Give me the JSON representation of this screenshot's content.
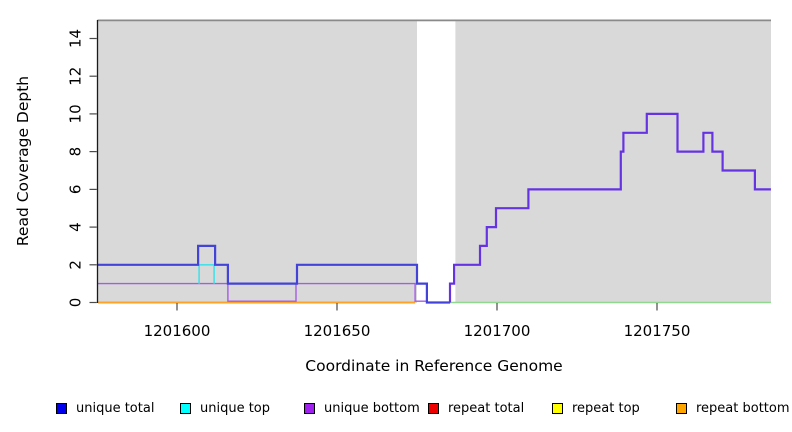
{
  "chart_data": {
    "type": "line",
    "subtype": "step-coverage",
    "title": "",
    "xlabel": "Coordinate in Reference Genome",
    "ylabel": "Read Coverage Depth",
    "xlim": [
      1201575,
      1201786
    ],
    "ylim": [
      0,
      15
    ],
    "x_ticks": [
      1201600,
      1201650,
      1201700,
      1201750
    ],
    "y_ticks": [
      0,
      2,
      4,
      6,
      8,
      10,
      12,
      14
    ],
    "grid": false,
    "plot_bg": "#d9d9d9",
    "gap_region": [
      1201675,
      1201687
    ],
    "series": [
      {
        "id": "repeat-bottom-line",
        "name": "repeat bottom",
        "color": "#ffa226",
        "width": 2,
        "points": [
          [
            1201575.3,
            0
          ],
          [
            1201674.4,
            0
          ]
        ]
      },
      {
        "id": "baseline-green",
        "name": "right baseline",
        "color": "#90d890",
        "width": 1.6,
        "points": [
          [
            1201685.3,
            0
          ],
          [
            1201785.6,
            0
          ]
        ]
      },
      {
        "id": "unique-bottom-line",
        "name": "unique bottom",
        "color": "#a55ce4",
        "width": 1.4,
        "points": [
          [
            1201575.3,
            1
          ],
          [
            1201615.9,
            1
          ],
          [
            1201615.9,
            0.07
          ],
          [
            1201637.2,
            0.07
          ],
          [
            1201637.2,
            1
          ],
          [
            1201674.4,
            1
          ],
          [
            1201674.4,
            0.07
          ],
          [
            1201678.1,
            0.07
          ]
        ]
      },
      {
        "id": "unique-top-line",
        "name": "unique top",
        "color": "#45e0e8",
        "width": 1.6,
        "points": [
          [
            1201606.9,
            1
          ],
          [
            1201606.9,
            2
          ],
          [
            1201611.6,
            2
          ],
          [
            1201611.6,
            1
          ]
        ]
      },
      {
        "id": "unique-total-left",
        "name": "unique total",
        "color": "#4343d8",
        "width": 2.2,
        "points": [
          [
            1201575.3,
            2
          ],
          [
            1201606.6,
            2
          ],
          [
            1201606.6,
            3
          ],
          [
            1201611.9,
            3
          ],
          [
            1201611.9,
            2
          ],
          [
            1201615.9,
            2
          ],
          [
            1201615.9,
            1
          ],
          [
            1201637.5,
            1
          ],
          [
            1201637.5,
            2
          ],
          [
            1201675,
            2
          ],
          [
            1201675,
            1
          ],
          [
            1201678.1,
            1
          ],
          [
            1201678.1,
            0
          ],
          [
            1201685.3,
            0
          ]
        ]
      },
      {
        "id": "unique-total-right",
        "name": "unique total",
        "color": "#6633e2",
        "width": 2.2,
        "points": [
          [
            1201685.3,
            0
          ],
          [
            1201685.3,
            1
          ],
          [
            1201686.6,
            1
          ],
          [
            1201686.6,
            2
          ],
          [
            1201694.7,
            2
          ],
          [
            1201694.7,
            3
          ],
          [
            1201696.8,
            3
          ],
          [
            1201696.8,
            4
          ],
          [
            1201699.7,
            4
          ],
          [
            1201699.7,
            5
          ],
          [
            1201709.8,
            5
          ],
          [
            1201709.8,
            6
          ],
          [
            1201738.7,
            6
          ],
          [
            1201738.7,
            8
          ],
          [
            1201739.5,
            8
          ],
          [
            1201739.5,
            9
          ],
          [
            1201746.8,
            9
          ],
          [
            1201746.8,
            10
          ],
          [
            1201756.4,
            10
          ],
          [
            1201756.4,
            8
          ],
          [
            1201764.5,
            8
          ],
          [
            1201764.5,
            9
          ],
          [
            1201767.3,
            9
          ],
          [
            1201767.3,
            8
          ],
          [
            1201770.5,
            8
          ],
          [
            1201770.5,
            7
          ],
          [
            1201780.6,
            7
          ],
          [
            1201780.6,
            6
          ],
          [
            1201785.6,
            6
          ]
        ]
      }
    ],
    "legend_position": "bottom",
    "legend": [
      {
        "label": "unique total",
        "color": "#0000ee"
      },
      {
        "label": "unique top",
        "color": "#00ffff"
      },
      {
        "label": "unique bottom",
        "color": "#a020f0"
      },
      {
        "label": "repeat total",
        "color": "#ee0000"
      },
      {
        "label": "repeat top",
        "color": "#ffff00"
      },
      {
        "label": "repeat bottom",
        "color": "#ffa500"
      }
    ]
  }
}
